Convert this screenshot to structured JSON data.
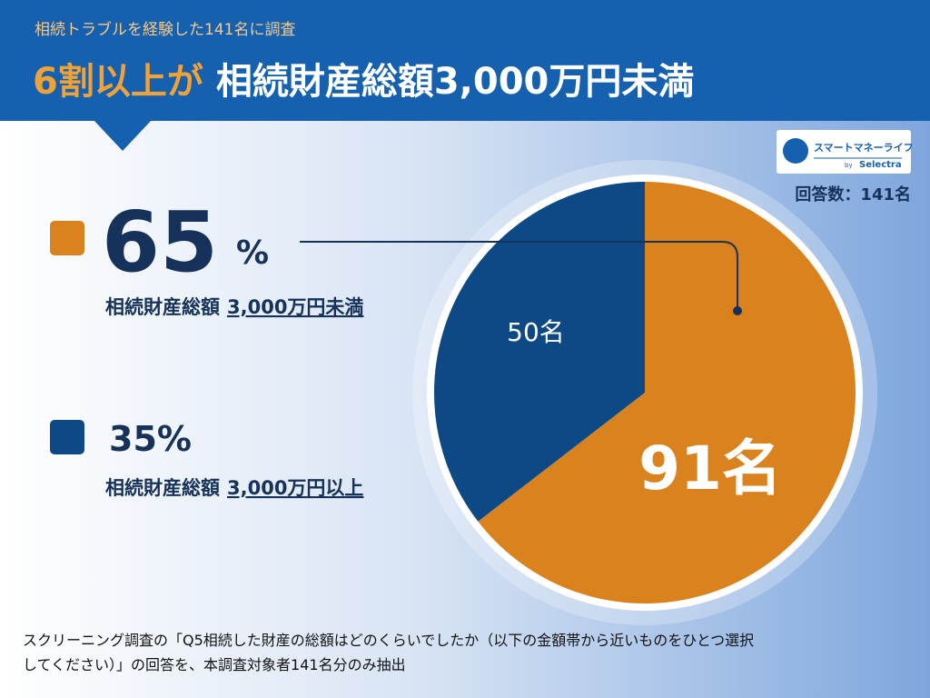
{
  "header": {
    "subtitle": "相続トラブルを経験した141名に調査",
    "title_highlight": "6割以上が",
    "title_rest": "相続財産総額3,000万円未満"
  },
  "logo": {
    "name": "スマートマネーライフ",
    "by": "by",
    "brand": "Selectra"
  },
  "respondents": "回答数：141名",
  "legend": [
    {
      "percent": "65",
      "unit": "%",
      "label": "相続財産総額",
      "amount": "3,000万円未満"
    },
    {
      "percent": "35%",
      "label": "相続財産総額",
      "amount": "3,000万円以上"
    }
  ],
  "chart_data": {
    "type": "pie",
    "values": [
      91,
      50
    ],
    "value_labels": [
      "91名",
      "50名"
    ],
    "colors": [
      "#d9821e",
      "#0d4a85"
    ]
  },
  "footnote": [
    "スクリーニング調査の「Q5相続した財産の総額はどのくらいでしたか（以下の金額帯から近いものをひとつ選択",
    "してください）」の回答を、本調査対象者141名分のみ抽出"
  ]
}
